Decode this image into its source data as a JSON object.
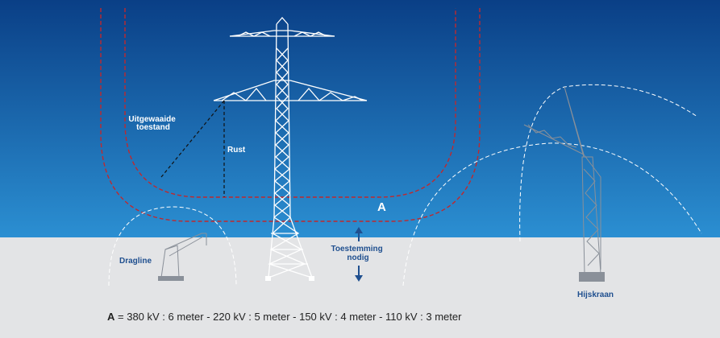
{
  "labels": {
    "swing": [
      "Uitgewaaide",
      "toestand"
    ],
    "rest": "Rust",
    "clearance": "A",
    "permission": [
      "Toestemming",
      "nodig"
    ],
    "dragline": "Dragline",
    "crane": "Hijskraan"
  },
  "legend": {
    "symbol": "A",
    "text": "= 380 kV : 6 meter - 220 kV : 5 meter - 150 kV : 4 meter - 110 kV : 3 meter"
  }
}
